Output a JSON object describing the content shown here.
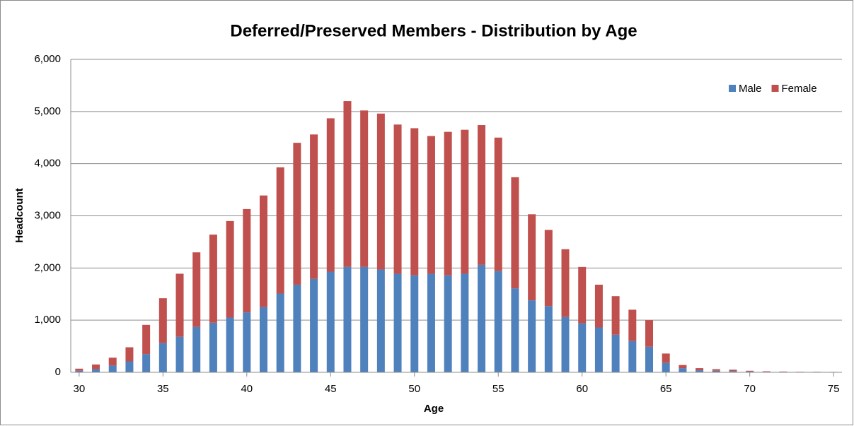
{
  "chart_data": {
    "type": "stacked_bar",
    "title": "Deferred/Preserved Members - Distribution by Age",
    "x_label": "Age",
    "y_label": "Headcount",
    "x": [
      30,
      31,
      32,
      33,
      34,
      35,
      36,
      37,
      38,
      39,
      40,
      41,
      42,
      43,
      44,
      45,
      46,
      47,
      48,
      49,
      50,
      51,
      52,
      53,
      54,
      55,
      56,
      57,
      58,
      59,
      60,
      61,
      62,
      63,
      64,
      65,
      66,
      67,
      68,
      69,
      70,
      71,
      72,
      73,
      74,
      75
    ],
    "series": [
      {
        "name": "Male",
        "color": "#4f81bd",
        "values": [
          30,
          60,
          130,
          210,
          350,
          560,
          680,
          870,
          950,
          1050,
          1150,
          1250,
          1510,
          1680,
          1790,
          1930,
          2020,
          2020,
          1970,
          1890,
          1860,
          1890,
          1860,
          1890,
          2060,
          1940,
          1610,
          1380,
          1270,
          1060,
          940,
          860,
          720,
          600,
          490,
          180,
          80,
          40,
          30,
          25,
          15,
          10,
          8,
          5,
          5,
          4
        ]
      },
      {
        "name": "Female",
        "color": "#c0504d",
        "values": [
          40,
          90,
          150,
          270,
          560,
          860,
          1210,
          1430,
          1690,
          1850,
          1980,
          2140,
          2420,
          2720,
          2770,
          2940,
          3180,
          3000,
          2990,
          2860,
          2820,
          2640,
          2750,
          2760,
          2680,
          2560,
          2130,
          1650,
          1460,
          1300,
          1080,
          820,
          740,
          600,
          510,
          180,
          60,
          40,
          30,
          25,
          15,
          10,
          7,
          5,
          5,
          4
        ]
      }
    ],
    "xlim": [
      29.5,
      75.5
    ],
    "xticks": [
      30,
      35,
      40,
      45,
      50,
      55,
      60,
      65,
      70,
      75
    ],
    "ylim": [
      0,
      6000
    ],
    "yticks": [
      0,
      {
        "value": 1000,
        "label": "1,000"
      },
      {
        "value": 2000,
        "label": "2,000"
      },
      {
        "value": 3000,
        "label": "3,000"
      },
      {
        "value": 4000,
        "label": "4,000"
      },
      {
        "value": 5000,
        "label": "5,000"
      },
      {
        "value": 6000,
        "label": "6,000"
      }
    ],
    "grid": true,
    "legend": "top-right"
  }
}
